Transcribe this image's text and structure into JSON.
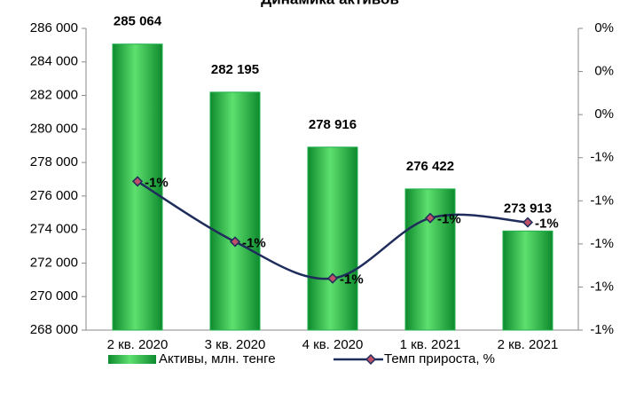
{
  "chart_data": {
    "type": "bar_line",
    "title": "Динамика активов",
    "categories": [
      "2 кв. 2020",
      "3 кв. 2020",
      "4 кв. 2020",
      "1 кв. 2021",
      "2 кв. 2021"
    ],
    "series": [
      {
        "name": "Активы, млн. тенге",
        "color": "#22b14c",
        "type": "bar",
        "values": [
          285064,
          282195,
          278916,
          276422,
          273913
        ],
        "value_labels": [
          "285 064",
          "282 195",
          "278 916",
          "276 422",
          "273 913"
        ]
      },
      {
        "name": "Темп прироста, %",
        "color": "#1f2d5c",
        "type": "line",
        "axis": "y2",
        "marker_color": "#c0506a",
        "label_color": "#e00000",
        "values": [
          -0.71,
          -0.99,
          -1.16,
          -0.88,
          -0.9
        ],
        "value_labels": [
          "-1%",
          "-1%",
          "-1%",
          "-1%",
          "-1%"
        ]
      }
    ],
    "ylim": [
      268000,
      286000
    ],
    "yticks": [
      {
        "value": 268000,
        "label": "268 000"
      },
      {
        "value": 270000,
        "label": "270 000"
      },
      {
        "value": 272000,
        "label": "272 000"
      },
      {
        "value": 274000,
        "label": "274 000"
      },
      {
        "value": 276000,
        "label": "276 000"
      },
      {
        "value": 278000,
        "label": "278 000"
      },
      {
        "value": 280000,
        "label": "280 000"
      },
      {
        "value": 282000,
        "label": "282 000"
      },
      {
        "value": 284000,
        "label": "284 000"
      },
      {
        "value": 286000,
        "label": "286 000"
      }
    ],
    "y2lim": [
      -1.4,
      0
    ],
    "y2ticks": [
      {
        "value": -1.4,
        "label": "-1%"
      },
      {
        "value": -1.2,
        "label": "-1%"
      },
      {
        "value": -1.0,
        "label": "-1%"
      },
      {
        "value": -0.8,
        "label": "-1%"
      },
      {
        "value": -0.6,
        "label": "-1%"
      },
      {
        "value": -0.4,
        "label": "0%"
      },
      {
        "value": -0.2,
        "label": "0%"
      },
      {
        "value": 0,
        "label": "0%"
      }
    ],
    "legend": "bottom"
  }
}
